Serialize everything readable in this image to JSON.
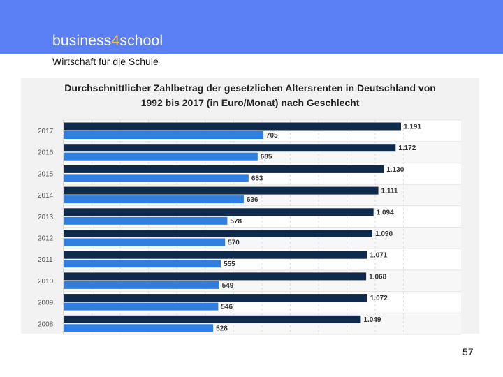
{
  "header": {
    "brand_part1": "business",
    "brand_accent": "4",
    "brand_part2": "school",
    "subtitle": "Wirtschaft für die Schule",
    "bar_color": "#5b7ff5",
    "accent_color": "#f5c242"
  },
  "footer": {
    "page_number": "57"
  },
  "chart_data": {
    "type": "bar",
    "orientation": "horizontal",
    "title_line1": "Durchschnittlicher Zahlbetrag der gesetzlichen Altersrenten in Deutschland von",
    "title_line2": "1992 bis 2017 (in Euro/Monat) nach Geschlecht",
    "categories": [
      "2017",
      "2016",
      "2015",
      "2014",
      "2013",
      "2012",
      "2011",
      "2010",
      "2009",
      "2008"
    ],
    "series": [
      {
        "values": [
          1191,
          1172,
          1130,
          1111,
          1094,
          1090,
          1071,
          1068,
          1072,
          1049
        ],
        "labels": [
          "1.191",
          "1.172",
          "1.130",
          "1.111",
          "1.094",
          "1.090",
          "1.071",
          "1.068",
          "1.072",
          "1.049"
        ],
        "color": "#0f2a4a"
      },
      {
        "values": [
          705,
          685,
          653,
          636,
          578,
          570,
          555,
          549,
          546,
          528
        ],
        "labels": [
          "705",
          "685",
          "653",
          "636",
          "578",
          "570",
          "555",
          "549",
          "546",
          "528"
        ],
        "color": "#2f7ee0"
      }
    ],
    "grid": true,
    "legend": "none"
  }
}
